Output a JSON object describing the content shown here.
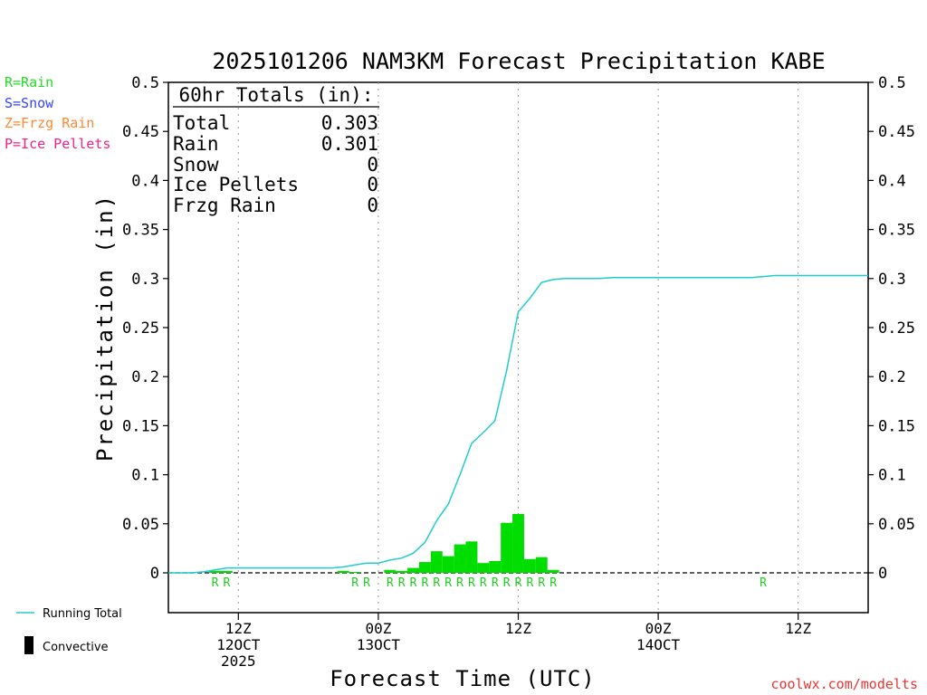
{
  "title": "2025101206 NAM3KM Forecast Precipitation KABE",
  "legend_types": [
    {
      "label": "R=Rain",
      "color": "#22dd22"
    },
    {
      "label": "S=Snow",
      "color": "#3344ff"
    },
    {
      "label": "Z=Frzg Rain",
      "color": "#ff8833"
    },
    {
      "label": "P=Ice Pellets",
      "color": "#ee2288"
    }
  ],
  "totals": {
    "heading": "60hr Totals (in):",
    "rows": [
      {
        "label": "Total",
        "value": "0.303"
      },
      {
        "label": "Rain",
        "value": "0.301"
      },
      {
        "label": "Snow",
        "value": "0"
      },
      {
        "label": "Ice Pellets",
        "value": "0"
      },
      {
        "label": "Frzg Rain",
        "value": "0"
      }
    ]
  },
  "series_legend": {
    "running_total": "Running Total",
    "convective": "Convective"
  },
  "credit": "coolwx.com/modelts",
  "colors": {
    "bar": "#00dd00",
    "line": "#22cccc",
    "rain_mark": "#22cc22",
    "credit": "#ee3333"
  },
  "chart_data": {
    "type": "bar",
    "title": "2025101206 NAM3KM Forecast Precipitation KABE",
    "xlabel": "Forecast Time (UTC)",
    "ylabel": "Precipitation (in)",
    "ylim": [
      -0.04,
      0.5
    ],
    "xlim": [
      0,
      60
    ],
    "yticks": [
      0,
      0.05,
      0.1,
      0.15,
      0.2,
      0.25,
      0.3,
      0.35,
      0.4,
      0.45,
      0.5
    ],
    "ytick_labels": [
      "0",
      "0.05",
      "0.1",
      "0.15",
      "0.2",
      "0.25",
      "0.3",
      "0.35",
      "0.4",
      "0.45",
      "0.5"
    ],
    "xticks": [
      {
        "hour": 6,
        "lines": [
          "12Z",
          "12OCT",
          "2025"
        ]
      },
      {
        "hour": 18,
        "lines": [
          "00Z",
          "13OCT"
        ]
      },
      {
        "hour": 30,
        "lines": [
          "12Z"
        ]
      },
      {
        "hour": 42,
        "lines": [
          "00Z",
          "14OCT"
        ]
      },
      {
        "hour": 54,
        "lines": [
          "12Z"
        ]
      }
    ],
    "hourly_precip": {
      "hours": [
        4,
        5,
        15,
        16,
        19,
        20,
        21,
        22,
        23,
        24,
        25,
        26,
        27,
        28,
        29,
        30,
        31,
        32,
        33
      ],
      "values": [
        0.002,
        0.002,
        0.002,
        0.001,
        0.003,
        0.002,
        0.005,
        0.011,
        0.022,
        0.017,
        0.029,
        0.032,
        0.01,
        0.012,
        0.051,
        0.06,
        0.014,
        0.016,
        0.003
      ]
    },
    "running_total": {
      "hours": [
        0,
        1,
        2,
        3,
        4,
        5,
        6,
        7,
        8,
        9,
        10,
        11,
        12,
        13,
        14,
        15,
        16,
        17,
        18,
        19,
        20,
        21,
        22,
        23,
        24,
        25,
        26,
        27,
        28,
        29,
        30,
        31,
        32,
        33,
        34,
        35,
        36,
        37,
        38,
        39,
        40,
        41,
        42,
        43,
        44,
        45,
        46,
        47,
        48,
        49,
        50,
        51,
        52,
        53,
        54,
        55,
        56,
        57,
        58,
        59,
        60
      ],
      "values": [
        0,
        0,
        0,
        0.001,
        0.003,
        0.005,
        0.005,
        0.005,
        0.005,
        0.005,
        0.005,
        0.005,
        0.005,
        0.005,
        0.005,
        0.006,
        0.008,
        0.01,
        0.01,
        0.013,
        0.015,
        0.02,
        0.031,
        0.053,
        0.07,
        0.1,
        0.132,
        0.143,
        0.155,
        0.206,
        0.266,
        0.28,
        0.296,
        0.299,
        0.3,
        0.3,
        0.3,
        0.3,
        0.301,
        0.301,
        0.301,
        0.301,
        0.301,
        0.301,
        0.301,
        0.301,
        0.301,
        0.301,
        0.301,
        0.301,
        0.301,
        0.302,
        0.303,
        0.303,
        0.303,
        0.303,
        0.303,
        0.303,
        0.303,
        0.303,
        0.303
      ]
    },
    "type_marks": {
      "hours": [
        4,
        5,
        16,
        17,
        19,
        20,
        21,
        22,
        23,
        24,
        25,
        26,
        27,
        28,
        29,
        30,
        31,
        32,
        33,
        51
      ],
      "label": "R"
    }
  }
}
